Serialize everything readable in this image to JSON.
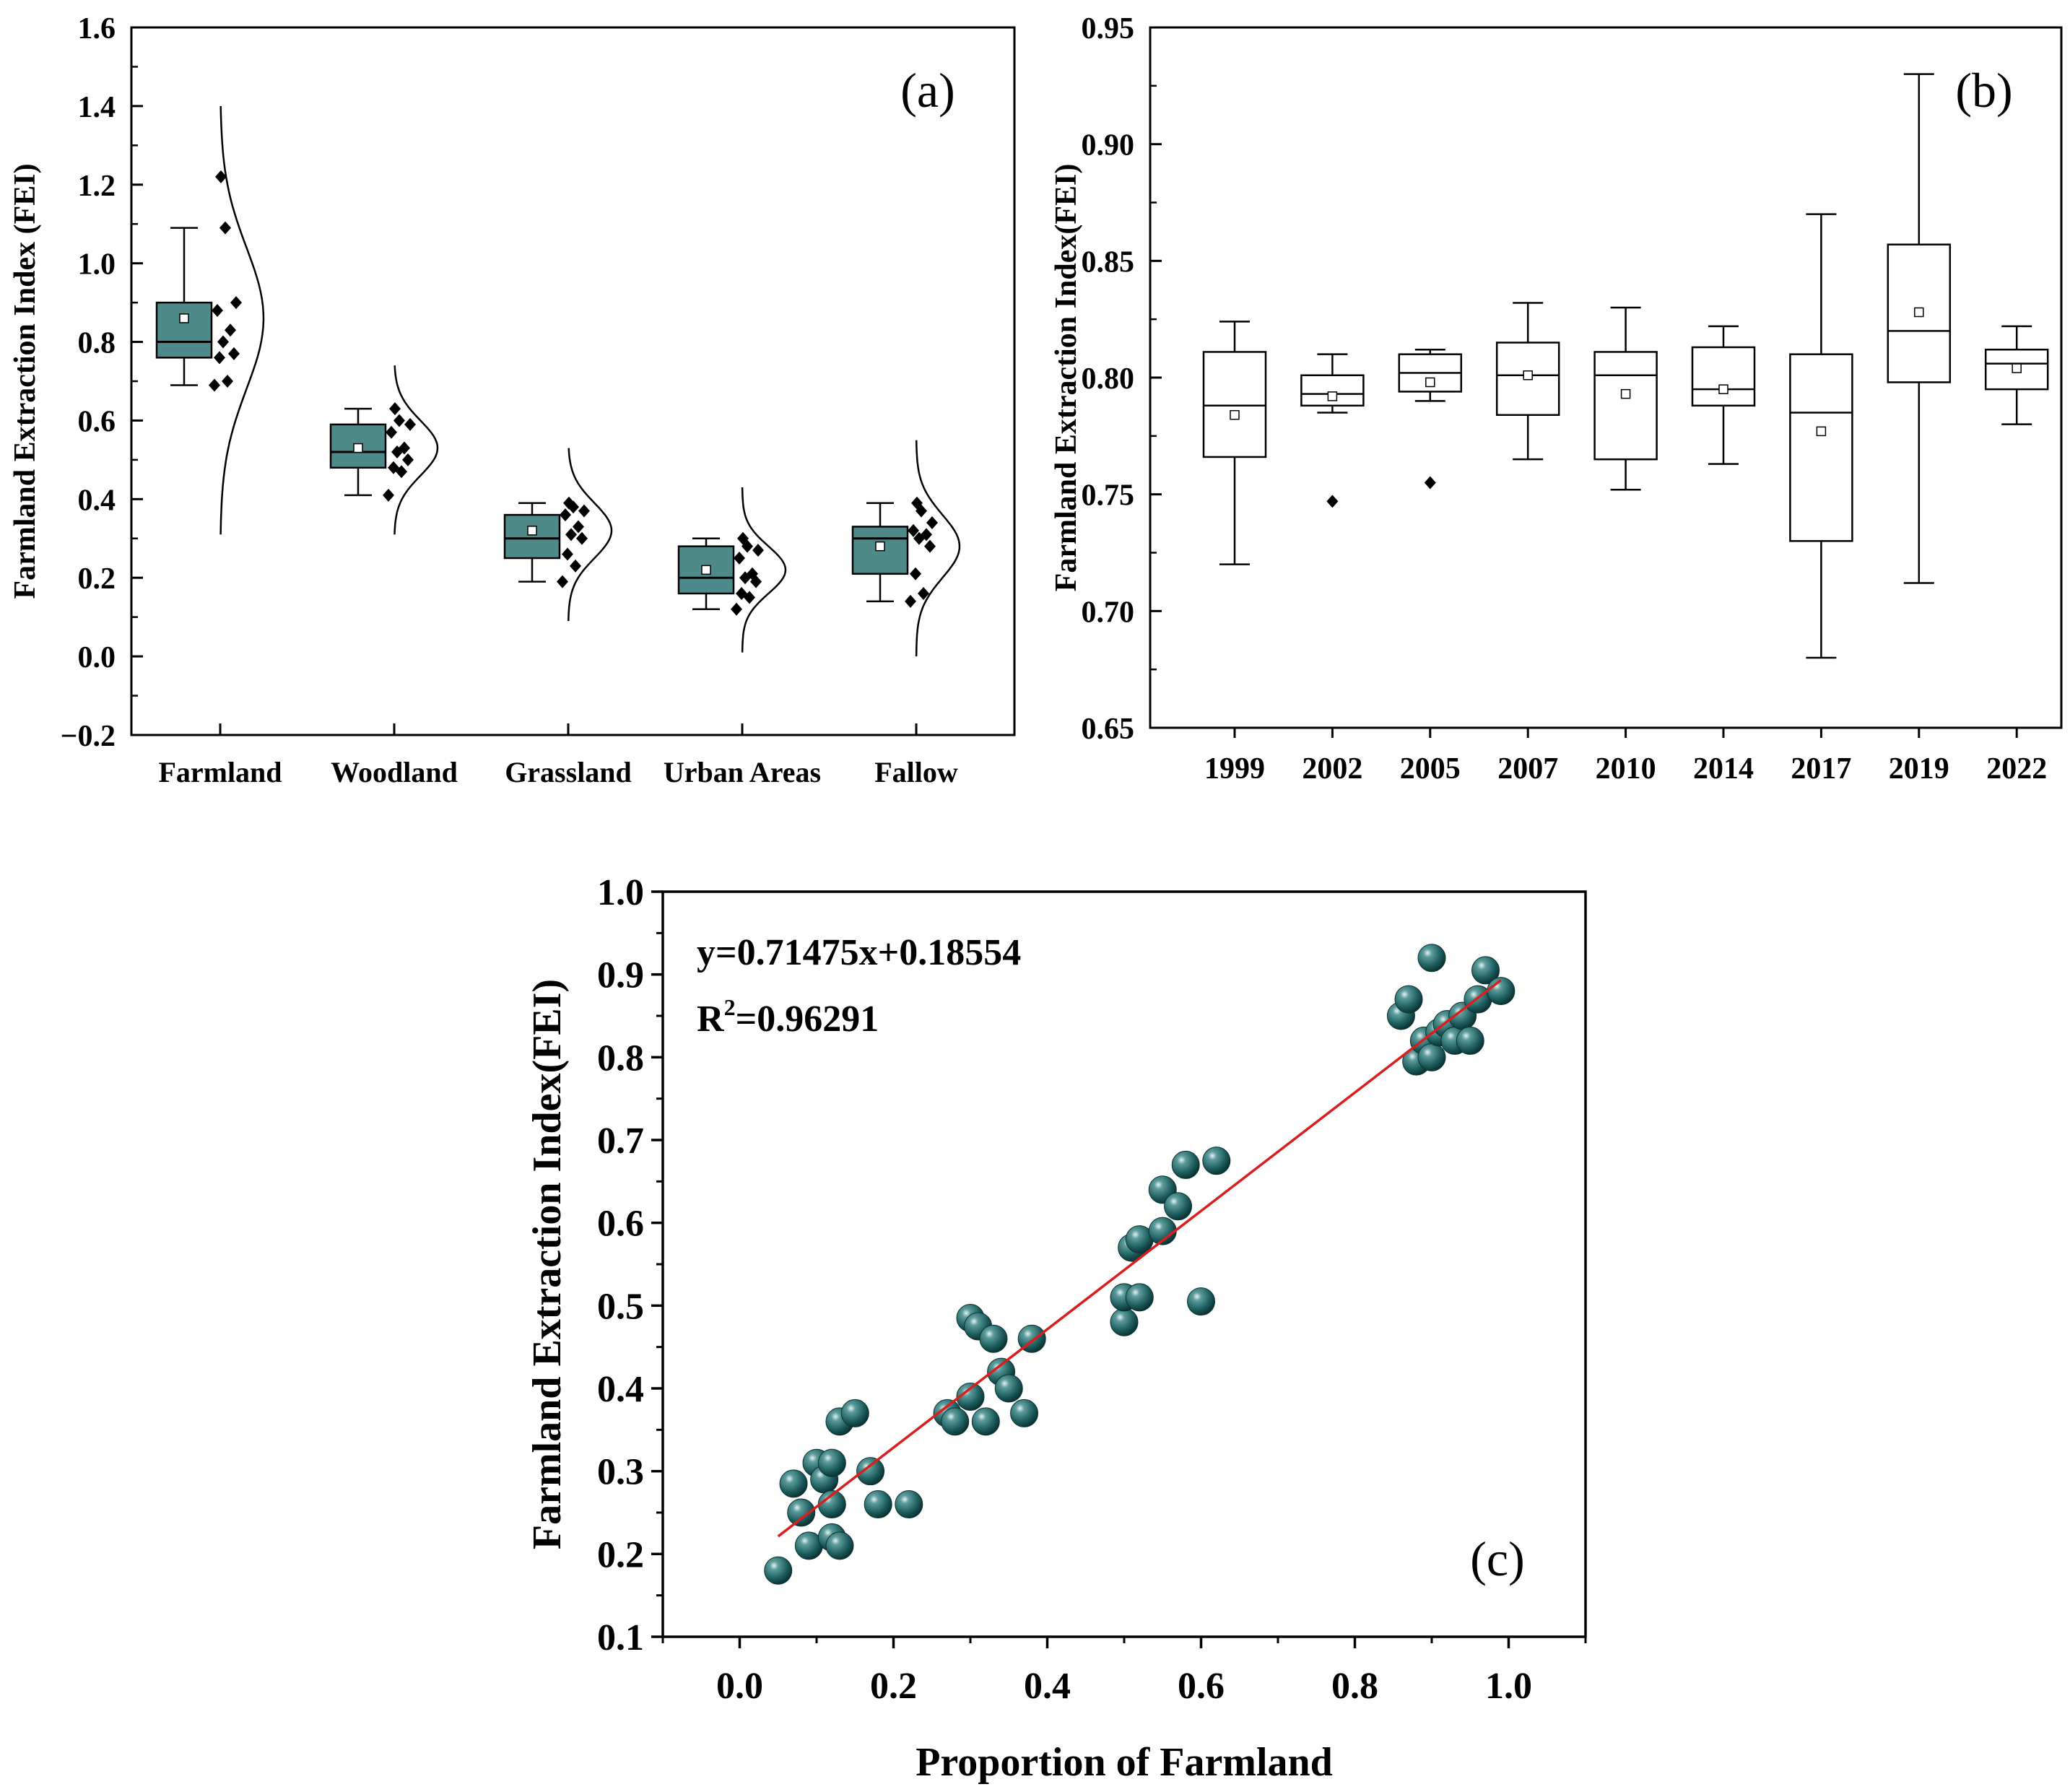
{
  "colors": {
    "box_fill_a": "#4f8a8b",
    "scatter_point": "#1c5b5c",
    "scatter_highlight": "#cfe3e3",
    "fit_line": "#d81e1e",
    "axis": "#000000"
  },
  "chart_data": [
    {
      "id": "a",
      "type": "box",
      "panel_label": "(a)",
      "ylabel": "Farmland Extraction Index (FEI)",
      "ylim": [
        -0.2,
        1.6
      ],
      "yticks": [
        "−0.2",
        "0.0",
        "0.2",
        "0.4",
        "0.6",
        "0.8",
        "1.0",
        "1.2",
        "1.4",
        "1.6"
      ],
      "ytick_values": [
        -0.2,
        0,
        0.2,
        0.4,
        0.6,
        0.8,
        1.0,
        1.2,
        1.4,
        1.6
      ],
      "categories": [
        "Farmland",
        "Woodland",
        "Grassland",
        "Urban Areas",
        "Fallow"
      ],
      "boxes": [
        {
          "whisker_low": 0.69,
          "q1": 0.76,
          "median": 0.8,
          "q3": 0.9,
          "whisker_high": 1.09,
          "mean": 0.86,
          "points": [
            0.69,
            0.7,
            0.76,
            0.77,
            0.8,
            0.83,
            0.88,
            0.9,
            1.09,
            1.22
          ],
          "curve": {
            "mu": 0.86,
            "sigma": 0.18,
            "low": 0.31,
            "high": 1.4
          }
        },
        {
          "whisker_low": 0.41,
          "q1": 0.48,
          "median": 0.52,
          "q3": 0.59,
          "whisker_high": 0.63,
          "mean": 0.53,
          "points": [
            0.41,
            0.47,
            0.48,
            0.5,
            0.52,
            0.53,
            0.57,
            0.59,
            0.6,
            0.63
          ],
          "curve": {
            "mu": 0.53,
            "sigma": 0.07,
            "low": 0.31,
            "high": 0.74
          }
        },
        {
          "whisker_low": 0.19,
          "q1": 0.25,
          "median": 0.3,
          "q3": 0.36,
          "whisker_high": 0.39,
          "mean": 0.32,
          "points": [
            0.19,
            0.23,
            0.26,
            0.3,
            0.31,
            0.33,
            0.36,
            0.37,
            0.38,
            0.39
          ],
          "curve": {
            "mu": 0.32,
            "sigma": 0.07,
            "low": 0.09,
            "high": 0.53
          }
        },
        {
          "whisker_low": 0.12,
          "q1": 0.16,
          "median": 0.2,
          "q3": 0.28,
          "whisker_high": 0.3,
          "mean": 0.22,
          "points": [
            0.12,
            0.15,
            0.16,
            0.19,
            0.2,
            0.21,
            0.25,
            0.27,
            0.28,
            0.3
          ],
          "curve": {
            "mu": 0.22,
            "sigma": 0.06,
            "low": 0.01,
            "high": 0.43
          }
        },
        {
          "whisker_low": 0.14,
          "q1": 0.21,
          "median": 0.3,
          "q3": 0.33,
          "whisker_high": 0.39,
          "mean": 0.28,
          "points": [
            0.14,
            0.16,
            0.21,
            0.28,
            0.3,
            0.31,
            0.32,
            0.34,
            0.37,
            0.39
          ],
          "curve": {
            "mu": 0.28,
            "sigma": 0.08,
            "low": 0.0,
            "high": 0.55
          }
        }
      ]
    },
    {
      "id": "b",
      "type": "box",
      "panel_label": "(b)",
      "ylabel": "Farmland Extraction Index(FEI)",
      "ylim": [
        0.65,
        0.95
      ],
      "yticks": [
        "0.65",
        "0.70",
        "0.75",
        "0.80",
        "0.85",
        "0.90",
        "0.95"
      ],
      "ytick_values": [
        0.65,
        0.7,
        0.75,
        0.8,
        0.85,
        0.9,
        0.95
      ],
      "categories": [
        "1999",
        "2002",
        "2005",
        "2007",
        "2010",
        "2014",
        "2017",
        "2019",
        "2022"
      ],
      "boxes": [
        {
          "whisker_low": 0.72,
          "q1": 0.766,
          "median": 0.788,
          "q3": 0.811,
          "whisker_high": 0.824,
          "mean": 0.784,
          "outliers": []
        },
        {
          "whisker_low": 0.785,
          "q1": 0.788,
          "median": 0.793,
          "q3": 0.801,
          "whisker_high": 0.81,
          "mean": 0.792,
          "outliers": [
            0.747
          ]
        },
        {
          "whisker_low": 0.79,
          "q1": 0.794,
          "median": 0.802,
          "q3": 0.81,
          "whisker_high": 0.812,
          "mean": 0.798,
          "outliers": [
            0.755
          ]
        },
        {
          "whisker_low": 0.765,
          "q1": 0.784,
          "median": 0.801,
          "q3": 0.815,
          "whisker_high": 0.832,
          "mean": 0.801,
          "outliers": []
        },
        {
          "whisker_low": 0.752,
          "q1": 0.765,
          "median": 0.801,
          "q3": 0.811,
          "whisker_high": 0.83,
          "mean": 0.793,
          "outliers": []
        },
        {
          "whisker_low": 0.763,
          "q1": 0.788,
          "median": 0.795,
          "q3": 0.813,
          "whisker_high": 0.822,
          "mean": 0.795,
          "outliers": []
        },
        {
          "whisker_low": 0.68,
          "q1": 0.73,
          "median": 0.785,
          "q3": 0.81,
          "whisker_high": 0.87,
          "mean": 0.777,
          "outliers": []
        },
        {
          "whisker_low": 0.712,
          "q1": 0.798,
          "median": 0.82,
          "q3": 0.857,
          "whisker_high": 0.93,
          "mean": 0.828,
          "outliers": []
        },
        {
          "whisker_low": 0.78,
          "q1": 0.795,
          "median": 0.806,
          "q3": 0.812,
          "whisker_high": 0.822,
          "mean": 0.804,
          "outliers": []
        }
      ]
    },
    {
      "id": "c",
      "type": "scatter",
      "panel_label": "(c)",
      "xlabel": "Proportion of Farmland",
      "ylabel": "Farmland Extraction Index(FEI)",
      "xlim": [
        -0.1,
        1.1
      ],
      "ylim": [
        0.1,
        1.0
      ],
      "xticks": [
        "0.0",
        "0.2",
        "0.4",
        "0.6",
        "0.8",
        "1.0"
      ],
      "xtick_values": [
        0.0,
        0.2,
        0.4,
        0.6,
        0.8,
        1.0
      ],
      "yticks": [
        "0.1",
        "0.2",
        "0.3",
        "0.4",
        "0.5",
        "0.6",
        "0.7",
        "0.8",
        "0.9",
        "1.0"
      ],
      "ytick_values": [
        0.1,
        0.2,
        0.3,
        0.4,
        0.5,
        0.6,
        0.7,
        0.8,
        0.9,
        1.0
      ],
      "equation": "y=0.71475x+0.18554",
      "r2_prefix": "R",
      "r2_sup": "2",
      "r2_value": "=0.96291",
      "fit": {
        "slope": 0.71475,
        "intercept": 0.18554,
        "x_start": 0.05,
        "x_end": 0.99
      },
      "points": [
        [
          0.05,
          0.18
        ],
        [
          0.07,
          0.285
        ],
        [
          0.08,
          0.25
        ],
        [
          0.09,
          0.21
        ],
        [
          0.1,
          0.31
        ],
        [
          0.11,
          0.29
        ],
        [
          0.12,
          0.26
        ],
        [
          0.12,
          0.31
        ],
        [
          0.12,
          0.22
        ],
        [
          0.13,
          0.21
        ],
        [
          0.13,
          0.36
        ],
        [
          0.15,
          0.37
        ],
        [
          0.17,
          0.3
        ],
        [
          0.18,
          0.26
        ],
        [
          0.22,
          0.26
        ],
        [
          0.27,
          0.37
        ],
        [
          0.28,
          0.36
        ],
        [
          0.3,
          0.39
        ],
        [
          0.3,
          0.485
        ],
        [
          0.31,
          0.475
        ],
        [
          0.32,
          0.36
        ],
        [
          0.33,
          0.46
        ],
        [
          0.34,
          0.42
        ],
        [
          0.35,
          0.4
        ],
        [
          0.37,
          0.37
        ],
        [
          0.38,
          0.46
        ],
        [
          0.5,
          0.48
        ],
        [
          0.5,
          0.51
        ],
        [
          0.51,
          0.57
        ],
        [
          0.52,
          0.58
        ],
        [
          0.52,
          0.51
        ],
        [
          0.55,
          0.59
        ],
        [
          0.55,
          0.64
        ],
        [
          0.57,
          0.62
        ],
        [
          0.58,
          0.67
        ],
        [
          0.6,
          0.505
        ],
        [
          0.62,
          0.675
        ],
        [
          0.86,
          0.85
        ],
        [
          0.87,
          0.87
        ],
        [
          0.88,
          0.795
        ],
        [
          0.89,
          0.82
        ],
        [
          0.9,
          0.8
        ],
        [
          0.9,
          0.92
        ],
        [
          0.91,
          0.83
        ],
        [
          0.92,
          0.84
        ],
        [
          0.93,
          0.82
        ],
        [
          0.94,
          0.85
        ],
        [
          0.95,
          0.82
        ],
        [
          0.96,
          0.87
        ],
        [
          0.97,
          0.905
        ],
        [
          0.99,
          0.88
        ]
      ]
    }
  ]
}
